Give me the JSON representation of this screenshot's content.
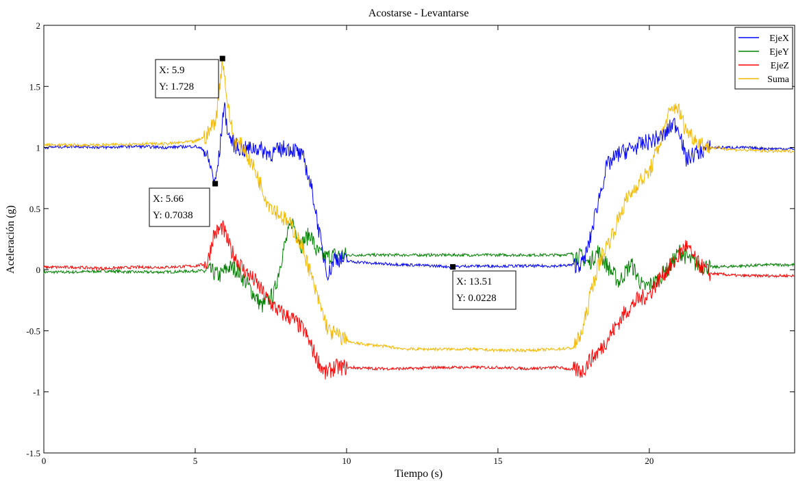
{
  "chart_data": {
    "type": "line",
    "title": "Acostarse - Levantarse",
    "xlabel": "Tiempo (s)",
    "ylabel": "Aceleración (g)",
    "xlim": [
      0,
      24.8
    ],
    "ylim": [
      -1.5,
      2
    ],
    "xticks": [
      0,
      5,
      10,
      15,
      20
    ],
    "yticks": [
      -1.5,
      -1,
      -0.5,
      0,
      0.5,
      1,
      1.5,
      2
    ],
    "xtick_labels": [
      "0",
      "5",
      "10",
      "15",
      "20"
    ],
    "ytick_labels": [
      "-1.5",
      "-1",
      "-0.5",
      "0",
      "0.5",
      "1",
      "1.5",
      "2"
    ],
    "grid": false,
    "legend_position": "top-right",
    "series": [
      {
        "name": "EjeX",
        "color": "#0000ff",
        "x": [
          0,
          1,
          2,
          3,
          4,
          5,
          5.3,
          5.5,
          5.66,
          5.8,
          5.95,
          6.1,
          6.3,
          6.6,
          7.0,
          7.5,
          8.0,
          8.3,
          8.6,
          8.9,
          9.2,
          9.4,
          9.6,
          10,
          11,
          12,
          13,
          13.51,
          14,
          15,
          16,
          17,
          17.5,
          17.8,
          18.0,
          18.3,
          18.6,
          19.0,
          19.5,
          20.0,
          20.5,
          20.8,
          21.0,
          21.2,
          21.5,
          22,
          23,
          24,
          24.8
        ],
        "y": [
          1.0,
          1.01,
          1.0,
          1.01,
          1.0,
          1.01,
          0.98,
          0.85,
          0.7038,
          0.95,
          1.35,
          1.1,
          1.02,
          0.98,
          1.0,
          0.95,
          1.0,
          0.98,
          0.9,
          0.6,
          0.15,
          -0.05,
          0.1,
          0.07,
          0.05,
          0.04,
          0.03,
          0.0228,
          0.03,
          0.03,
          0.03,
          0.03,
          0.04,
          0.05,
          0.2,
          0.55,
          0.85,
          0.95,
          1.0,
          1.05,
          1.1,
          1.2,
          1.15,
          0.9,
          0.95,
          1.0,
          1.0,
          0.99,
          0.99
        ]
      },
      {
        "name": "EjeY",
        "color": "#008000",
        "x": [
          0,
          1,
          2,
          3,
          4,
          5,
          5.5,
          5.8,
          6.1,
          6.4,
          6.8,
          7.2,
          7.6,
          7.9,
          8.2,
          8.5,
          8.8,
          9.0,
          9.3,
          9.6,
          10,
          11,
          12,
          13,
          14,
          15,
          16,
          17,
          17.5,
          17.8,
          18.0,
          18.3,
          18.7,
          19.0,
          19.4,
          19.8,
          20.2,
          20.6,
          21.0,
          21.5,
          22,
          23,
          24,
          24.8
        ],
        "y": [
          -0.02,
          -0.02,
          -0.01,
          -0.02,
          -0.02,
          -0.01,
          -0.01,
          -0.05,
          0.02,
          0.0,
          -0.15,
          -0.3,
          -0.2,
          0.15,
          0.4,
          0.2,
          0.3,
          0.15,
          0.1,
          0.12,
          0.12,
          0.12,
          0.12,
          0.12,
          0.12,
          0.12,
          0.12,
          0.12,
          0.13,
          0.1,
          0.05,
          0.15,
          0.0,
          -0.1,
          0.05,
          -0.15,
          -0.1,
          0.0,
          0.15,
          0.05,
          0.02,
          0.03,
          0.04,
          0.04
        ]
      },
      {
        "name": "EjeZ",
        "color": "#ff0000",
        "x": [
          0,
          1,
          2,
          3,
          4,
          5,
          5.4,
          5.6,
          5.9,
          6.2,
          6.6,
          7.0,
          7.4,
          7.8,
          8.2,
          8.6,
          9.0,
          9.3,
          9.6,
          10,
          11,
          12,
          13,
          14,
          15,
          16,
          17,
          17.5,
          17.8,
          18.0,
          18.4,
          18.8,
          19.2,
          19.6,
          20.0,
          20.4,
          20.8,
          21.2,
          21.6,
          22,
          23,
          24,
          24.8
        ],
        "y": [
          0.02,
          0.02,
          0.01,
          0.02,
          0.02,
          0.03,
          0.05,
          0.28,
          0.35,
          0.15,
          0.0,
          -0.1,
          -0.25,
          -0.35,
          -0.4,
          -0.5,
          -0.72,
          -0.85,
          -0.8,
          -0.8,
          -0.81,
          -0.81,
          -0.8,
          -0.8,
          -0.8,
          -0.81,
          -0.8,
          -0.82,
          -0.83,
          -0.75,
          -0.65,
          -0.5,
          -0.35,
          -0.25,
          -0.2,
          -0.05,
          0.05,
          0.2,
          0.05,
          -0.03,
          -0.05,
          -0.05,
          -0.05
        ]
      },
      {
        "name": "Suma",
        "color": "#f5b800",
        "x": [
          0,
          1,
          2,
          3,
          4,
          5,
          5.4,
          5.7,
          5.9,
          6.1,
          6.3,
          6.6,
          7.0,
          7.4,
          7.8,
          8.2,
          8.6,
          9.0,
          9.4,
          9.8,
          10.2,
          11,
          12,
          13,
          14,
          15,
          16,
          17,
          17.5,
          17.8,
          18.1,
          18.4,
          18.8,
          19.2,
          19.6,
          20.0,
          20.3,
          20.6,
          20.9,
          21.2,
          21.6,
          22,
          23,
          24,
          24.8
        ],
        "y": [
          1.02,
          1.02,
          1.02,
          1.03,
          1.03,
          1.05,
          1.1,
          1.25,
          1.728,
          1.3,
          1.05,
          1.0,
          0.8,
          0.55,
          0.45,
          0.35,
          0.15,
          -0.2,
          -0.5,
          -0.55,
          -0.6,
          -0.62,
          -0.65,
          -0.65,
          -0.65,
          -0.66,
          -0.66,
          -0.65,
          -0.64,
          -0.5,
          -0.15,
          0.1,
          0.3,
          0.55,
          0.7,
          0.8,
          1.0,
          1.25,
          1.35,
          1.15,
          1.05,
          1.0,
          0.98,
          0.97,
          0.97
        ]
      }
    ],
    "annotations": [
      {
        "x": 5.9,
        "y": 1.728,
        "lines": [
          "X: 5.9",
          "Y: 1.728"
        ]
      },
      {
        "x": 5.66,
        "y": 0.7038,
        "lines": [
          "X: 5.66",
          "Y: 0.7038"
        ]
      },
      {
        "x": 13.51,
        "y": 0.0228,
        "lines": [
          "X: 13.51",
          "Y: 0.0228"
        ]
      }
    ]
  }
}
